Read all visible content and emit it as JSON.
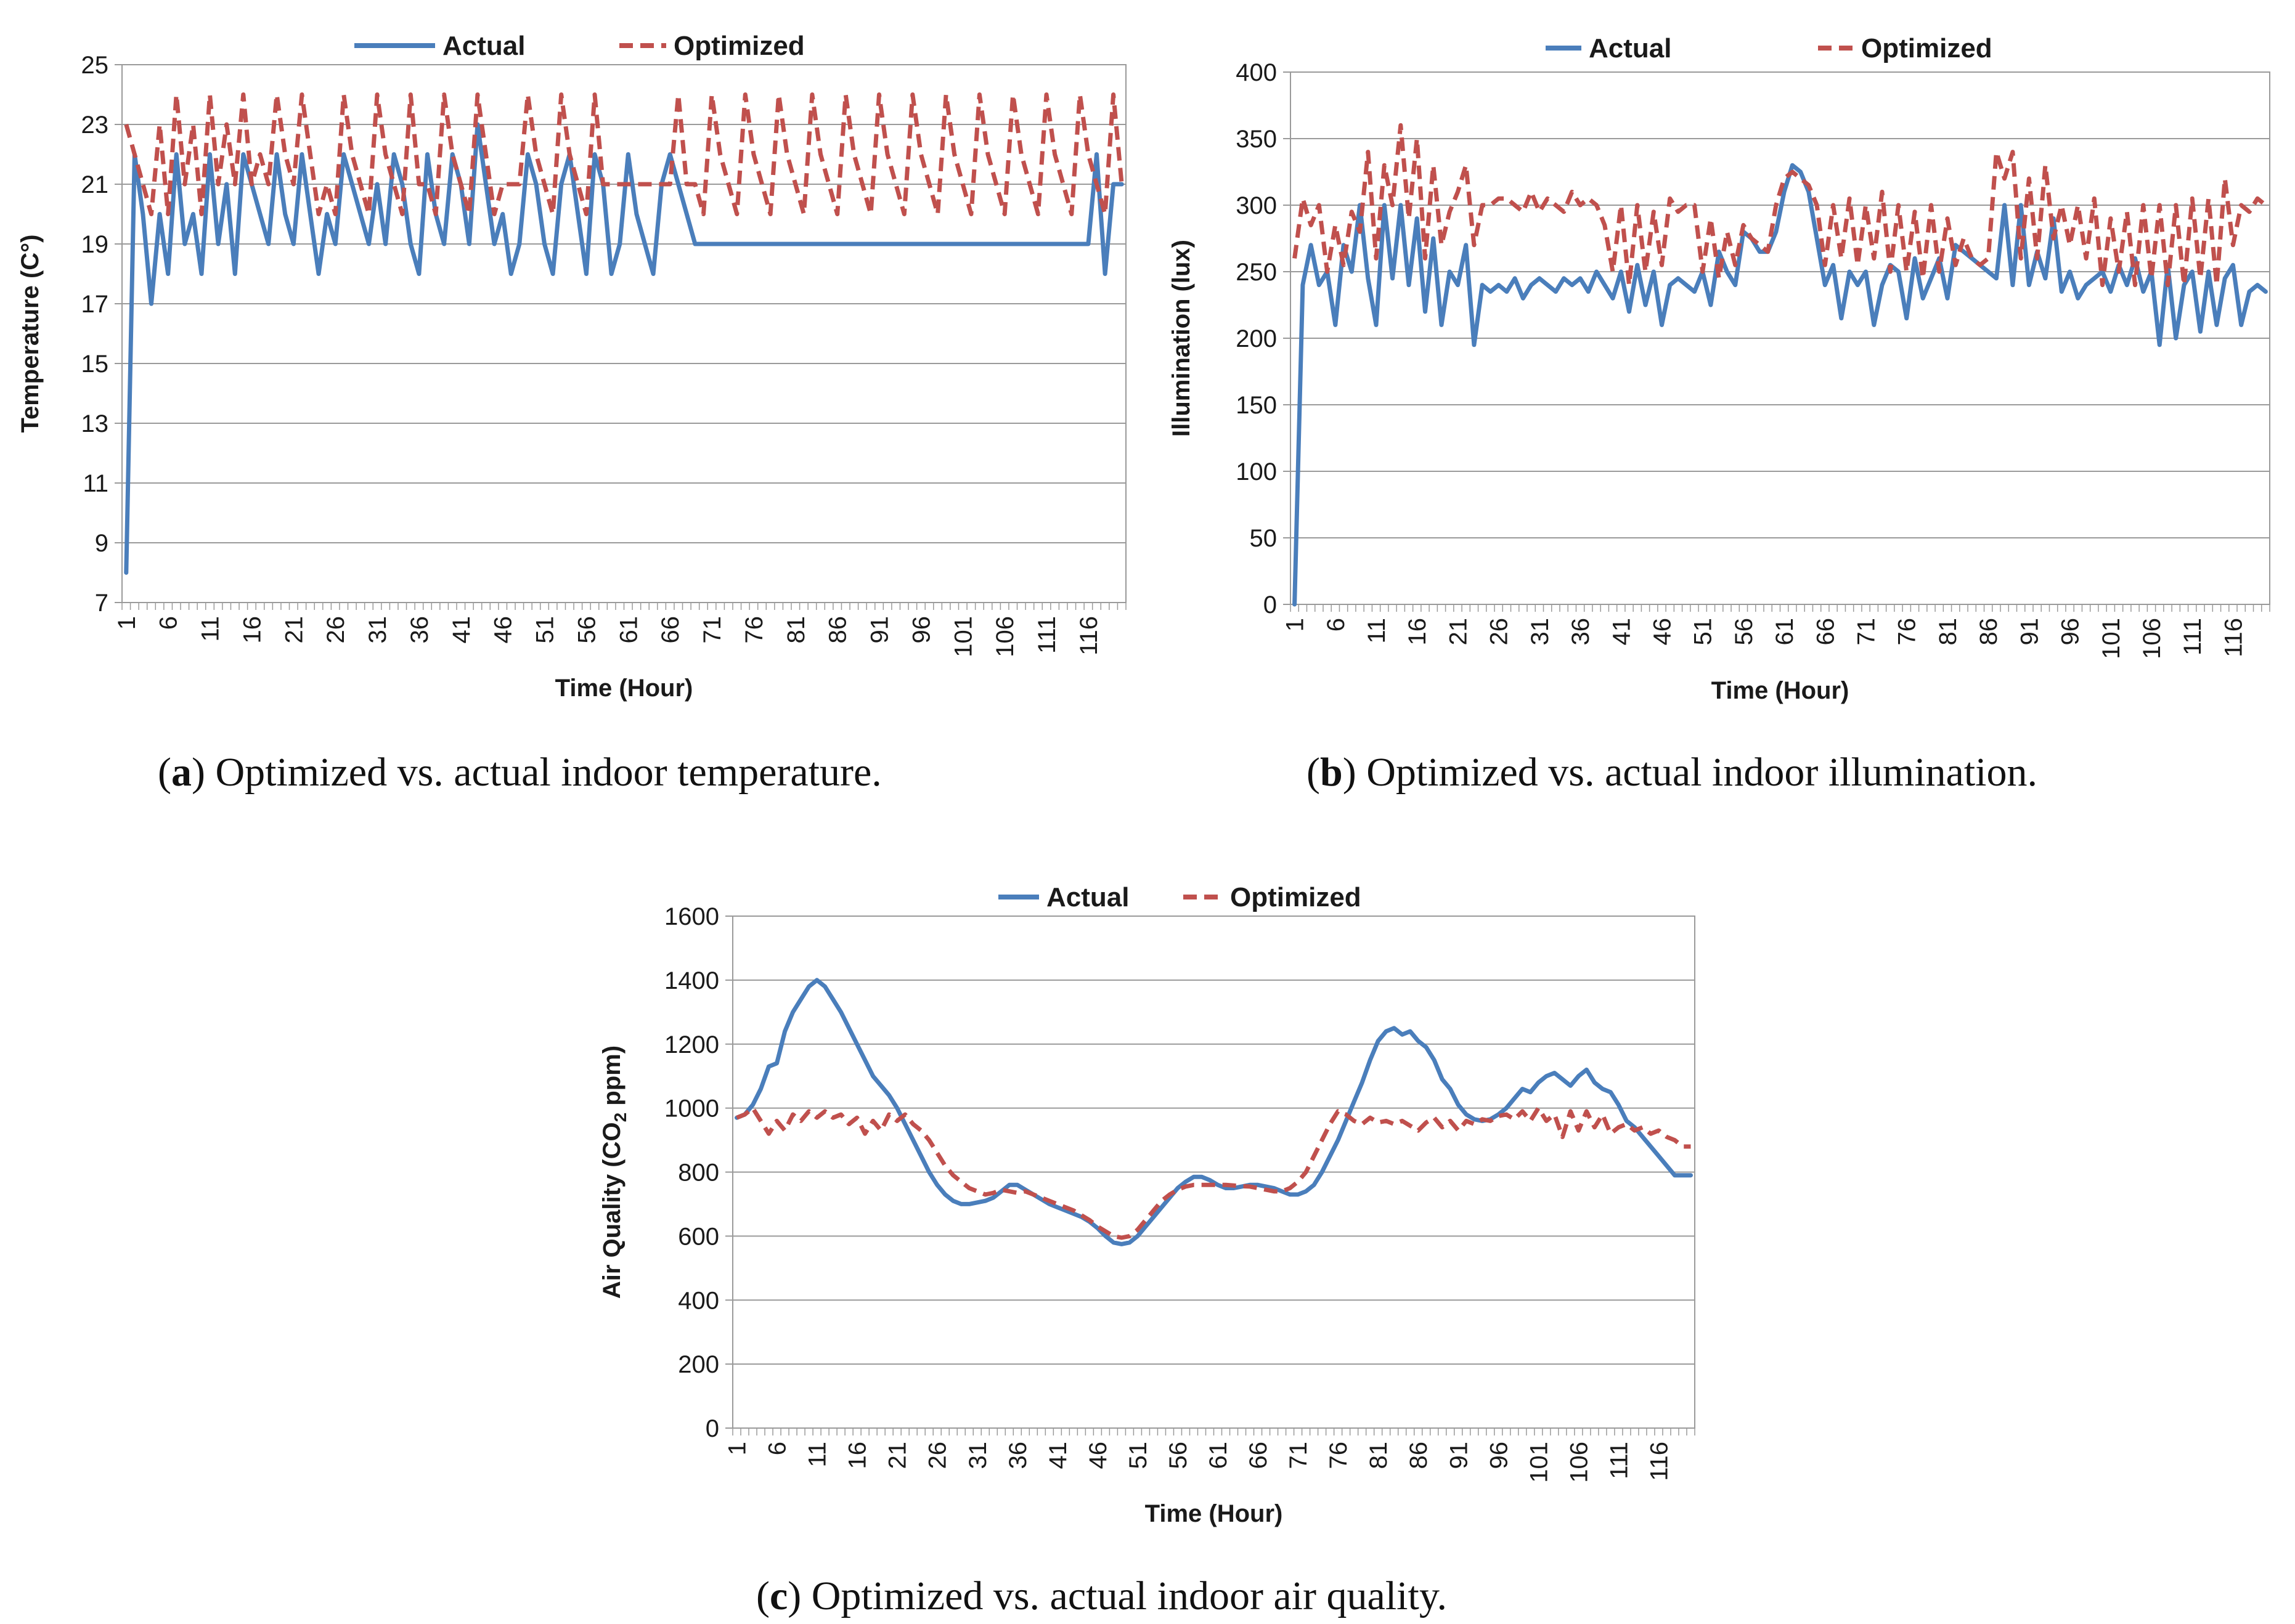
{
  "chart_data": [
    {
      "id": "temperature",
      "type": "line",
      "caption_letter": "a",
      "caption_text": "Optimized vs. actual indoor temperature.",
      "xlabel": "Time (Hour)",
      "ylabel": "Temperature (C°)",
      "ylim": [
        7,
        25
      ],
      "yticks": [
        7,
        9,
        11,
        13,
        15,
        17,
        19,
        21,
        23,
        25
      ],
      "xticks": [
        "1",
        "6",
        "11",
        "16",
        "21",
        "26",
        "31",
        "36",
        "41",
        "46",
        "51",
        "56",
        "61",
        "66",
        "71",
        "76",
        "81",
        "86",
        "91",
        "96",
        "101",
        "106",
        "111",
        "116"
      ],
      "x_count": 120,
      "grid": "horizontal",
      "legend_position": "top",
      "series": [
        {
          "name": "Actual",
          "color": "#4a7ebb",
          "dash": "solid",
          "values": [
            8,
            22,
            20,
            17,
            20,
            18,
            22,
            19,
            20,
            18,
            22,
            19,
            21,
            18,
            22,
            21,
            20,
            19,
            22,
            20,
            19,
            22,
            20,
            18,
            20,
            19,
            22,
            21,
            20,
            19,
            21,
            19,
            22,
            21,
            19,
            18,
            22,
            20,
            19,
            22,
            21,
            19,
            23,
            21,
            19,
            20,
            18,
            19,
            22,
            21,
            19,
            18,
            21,
            22,
            20,
            18,
            22,
            21,
            18,
            19,
            22,
            20,
            19,
            18,
            21,
            22,
            21,
            20,
            19,
            19,
            19,
            19,
            19,
            19,
            19,
            19,
            19,
            19,
            19,
            19,
            19,
            19,
            19,
            19,
            19,
            19,
            19,
            19,
            19,
            19,
            19,
            19,
            19,
            19,
            19,
            19,
            19,
            19,
            19,
            19,
            19,
            19,
            19,
            19,
            19,
            19,
            19,
            19,
            19,
            19,
            19,
            19,
            19,
            19,
            19,
            19,
            22,
            18,
            21,
            21
          ]
        },
        {
          "name": "Optimized",
          "color": "#c0504d",
          "dash": "dashed",
          "values": [
            23,
            22,
            21,
            20,
            23,
            20,
            24,
            21,
            23,
            20,
            24,
            21,
            23,
            21,
            24,
            21,
            22,
            21,
            24,
            22,
            21,
            24,
            22,
            20,
            21,
            20,
            24,
            22,
            21,
            20,
            24,
            22,
            21,
            20,
            24,
            21,
            21,
            20,
            24,
            22,
            21,
            20,
            24,
            22,
            20,
            21,
            21,
            21,
            24,
            22,
            21,
            20,
            24,
            22,
            21,
            20,
            24,
            21,
            21,
            21,
            21,
            21,
            21,
            21,
            21,
            21,
            24,
            21,
            21,
            20,
            24,
            22,
            21,
            20,
            24,
            22,
            21,
            20,
            24,
            22,
            21,
            20,
            24,
            22,
            21,
            20,
            24,
            22,
            21,
            20,
            24,
            22,
            21,
            20,
            24,
            22,
            21,
            20,
            24,
            22,
            21,
            20,
            24,
            22,
            21,
            20,
            24,
            22,
            21,
            20,
            24,
            22,
            21,
            20,
            24,
            22,
            21,
            20,
            24,
            21
          ]
        }
      ]
    },
    {
      "id": "illumination",
      "type": "line",
      "caption_letter": "b",
      "caption_text": "Optimized vs. actual indoor illumination.",
      "xlabel": "Time (Hour)",
      "ylabel": "Illumination (lux)",
      "ylim": [
        0,
        400
      ],
      "yticks": [
        0,
        50,
        100,
        150,
        200,
        250,
        300,
        350,
        400
      ],
      "xticks": [
        "1",
        "6",
        "11",
        "16",
        "21",
        "26",
        "31",
        "36",
        "41",
        "46",
        "51",
        "56",
        "61",
        "66",
        "71",
        "76",
        "81",
        "86",
        "91",
        "96",
        "101",
        "106",
        "111",
        "116"
      ],
      "x_count": 120,
      "grid": "horizontal",
      "legend_position": "top",
      "series": [
        {
          "name": "Actual",
          "color": "#4a7ebb",
          "dash": "solid",
          "values": [
            0,
            240,
            270,
            240,
            250,
            210,
            270,
            250,
            300,
            245,
            210,
            300,
            245,
            300,
            240,
            290,
            220,
            275,
            210,
            250,
            240,
            270,
            195,
            240,
            235,
            240,
            235,
            245,
            230,
            240,
            245,
            240,
            235,
            245,
            240,
            245,
            235,
            250,
            240,
            230,
            250,
            220,
            255,
            225,
            250,
            210,
            240,
            245,
            240,
            235,
            250,
            225,
            265,
            250,
            240,
            280,
            275,
            265,
            265,
            280,
            310,
            330,
            325,
            310,
            275,
            240,
            255,
            215,
            250,
            240,
            250,
            210,
            240,
            255,
            250,
            215,
            260,
            230,
            245,
            260,
            230,
            270,
            265,
            260,
            255,
            250,
            245,
            300,
            240,
            300,
            240,
            265,
            245,
            290,
            235,
            250,
            230,
            240,
            245,
            250,
            235,
            255,
            240,
            260,
            235,
            250,
            195,
            255,
            200,
            240,
            250,
            205,
            250,
            210,
            245,
            255,
            210,
            235,
            240,
            235
          ]
        },
        {
          "name": "Optimized",
          "color": "#c0504d",
          "dash": "dashed",
          "values": [
            260,
            305,
            285,
            300,
            250,
            285,
            255,
            295,
            280,
            340,
            260,
            330,
            300,
            360,
            290,
            350,
            260,
            330,
            270,
            295,
            310,
            330,
            270,
            300,
            300,
            305,
            305,
            300,
            295,
            310,
            295,
            305,
            300,
            295,
            310,
            300,
            305,
            300,
            285,
            250,
            300,
            240,
            300,
            250,
            295,
            255,
            305,
            295,
            300,
            300,
            250,
            290,
            245,
            280,
            255,
            285,
            275,
            270,
            265,
            300,
            320,
            325,
            320,
            315,
            300,
            255,
            300,
            260,
            305,
            255,
            300,
            260,
            310,
            250,
            300,
            250,
            295,
            245,
            300,
            250,
            290,
            255,
            275,
            260,
            255,
            260,
            340,
            320,
            340,
            260,
            320,
            260,
            330,
            275,
            300,
            270,
            300,
            260,
            305,
            240,
            290,
            250,
            295,
            240,
            300,
            245,
            300,
            240,
            300,
            240,
            305,
            245,
            305,
            240,
            320,
            270,
            300,
            295,
            305,
            300
          ]
        }
      ]
    },
    {
      "id": "air_quality",
      "type": "line",
      "caption_letter": "c",
      "caption_text": "Optimized vs. actual indoor air quality.",
      "xlabel": "Time (Hour)",
      "ylabel_main": "Air Quality (CO",
      "ylabel_sub": "2",
      "ylabel_tail": " ppm)",
      "ylim": [
        0,
        1600
      ],
      "yticks": [
        0,
        200,
        400,
        600,
        800,
        1000,
        1200,
        1400,
        1600
      ],
      "xticks": [
        "1",
        "6",
        "11",
        "16",
        "21",
        "26",
        "31",
        "36",
        "41",
        "46",
        "51",
        "56",
        "61",
        "66",
        "71",
        "76",
        "81",
        "86",
        "91",
        "96",
        "101",
        "106",
        "111",
        "116"
      ],
      "x_count": 120,
      "grid": "horizontal",
      "legend_position": "top",
      "series": [
        {
          "name": "Actual",
          "color": "#4a7ebb",
          "dash": "solid",
          "values": [
            970,
            980,
            1010,
            1060,
            1130,
            1140,
            1240,
            1300,
            1340,
            1380,
            1400,
            1380,
            1340,
            1300,
            1250,
            1200,
            1150,
            1100,
            1070,
            1040,
            1000,
            950,
            900,
            850,
            800,
            760,
            730,
            710,
            700,
            700,
            705,
            710,
            720,
            740,
            760,
            760,
            745,
            730,
            715,
            700,
            690,
            680,
            670,
            660,
            645,
            625,
            600,
            580,
            575,
            580,
            600,
            630,
            660,
            690,
            720,
            750,
            770,
            785,
            785,
            775,
            760,
            750,
            750,
            755,
            760,
            760,
            755,
            750,
            740,
            730,
            730,
            740,
            760,
            800,
            850,
            900,
            960,
            1020,
            1080,
            1150,
            1210,
            1240,
            1250,
            1230,
            1240,
            1210,
            1190,
            1150,
            1090,
            1060,
            1010,
            980,
            965,
            960,
            965,
            980,
            1000,
            1030,
            1060,
            1050,
            1080,
            1100,
            1110,
            1090,
            1070,
            1100,
            1120,
            1080,
            1060,
            1050,
            1010,
            960,
            940,
            910,
            880,
            850,
            820,
            790,
            790,
            790
          ]
        },
        {
          "name": "Optimized",
          "color": "#c0504d",
          "dash": "dashed",
          "values": [
            970,
            980,
            1000,
            960,
            920,
            960,
            930,
            980,
            960,
            990,
            970,
            990,
            970,
            980,
            950,
            970,
            920,
            960,
            930,
            980,
            960,
            980,
            950,
            930,
            900,
            860,
            820,
            790,
            770,
            750,
            740,
            730,
            735,
            745,
            740,
            735,
            740,
            730,
            720,
            710,
            700,
            690,
            680,
            665,
            650,
            630,
            615,
            600,
            595,
            600,
            620,
            650,
            680,
            710,
            730,
            745,
            755,
            760,
            760,
            760,
            760,
            760,
            758,
            756,
            755,
            750,
            745,
            740,
            740,
            750,
            770,
            800,
            850,
            900,
            950,
            990,
            980,
            960,
            950,
            970,
            955,
            960,
            950,
            960,
            945,
            930,
            955,
            970,
            940,
            960,
            930,
            960,
            950,
            965,
            960,
            975,
            980,
            965,
            990,
            960,
            1000,
            960,
            980,
            910,
            990,
            930,
            990,
            940,
            980,
            920,
            940,
            950,
            930,
            940,
            920,
            930,
            910,
            900,
            880,
            880
          ]
        }
      ]
    }
  ]
}
